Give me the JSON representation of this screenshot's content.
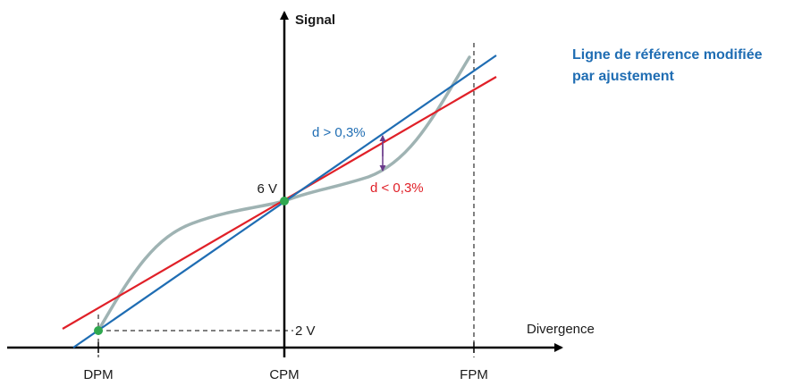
{
  "axes": {
    "y_label": "Signal",
    "x_label": "Divergence",
    "x_ticks": [
      "DPM",
      "CPM",
      "FPM"
    ],
    "y_marks": {
      "mid": "6 V",
      "low": "2 V"
    }
  },
  "annotations": {
    "upper": "d > 0,3%",
    "lower": "d < 0,3%"
  },
  "legend": {
    "line1": "Ligne de référence modifiée",
    "line2": "par ajustement"
  },
  "colors": {
    "blue": "#1f6db3",
    "red": "#e02028",
    "curve": "#9fb3b3",
    "green": "#2fa84f",
    "legend_text": "#1f6db3",
    "axis": "#000000"
  }
}
